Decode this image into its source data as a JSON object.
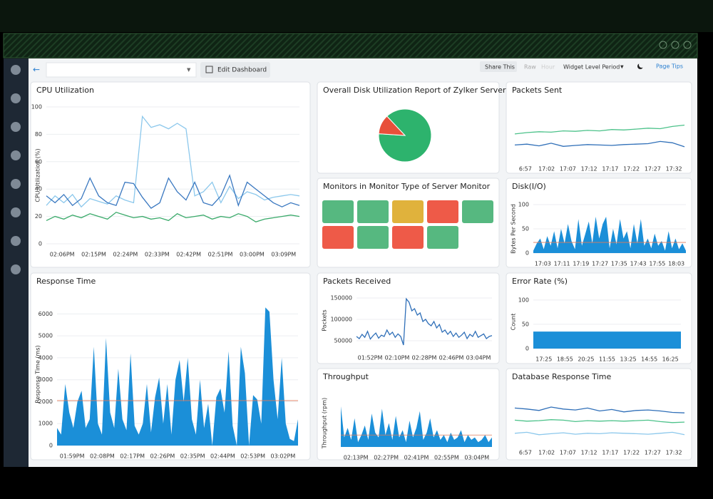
{
  "toolbar": {
    "edit": "Edit Dashboard",
    "share": "Share This",
    "raw": "Raw",
    "hour": "Hour",
    "period": "Widget Level Period",
    "tips": "Page Tips"
  },
  "widgets": [
    {
      "type": "line",
      "title": "CPU Utilization",
      "y_label": "CPU Utilization (%)",
      "ylim": [
        0,
        100
      ],
      "yticks": [
        0,
        20,
        40,
        60,
        80,
        100
      ],
      "x_labels": [
        "02:06PM",
        "02:15PM",
        "02:24PM",
        "02:33PM",
        "02:42PM",
        "02:51PM",
        "03:00PM",
        "03:09PM"
      ],
      "series": [
        {
          "color": "#8cc8ec",
          "values": [
            28,
            35,
            30,
            36,
            27,
            33,
            31,
            29,
            35,
            32,
            30,
            93,
            85,
            87,
            84,
            88,
            84,
            35,
            38,
            45,
            30,
            42,
            33,
            38,
            36,
            32,
            34,
            35,
            36,
            35
          ]
        },
        {
          "color": "#3a78c0",
          "values": [
            35,
            30,
            36,
            28,
            33,
            48,
            35,
            30,
            28,
            45,
            44,
            34,
            26,
            30,
            48,
            38,
            32,
            45,
            30,
            28,
            35,
            50,
            28,
            45,
            40,
            35,
            30,
            27,
            30,
            28
          ]
        },
        {
          "color": "#3aaa6a",
          "values": [
            17,
            20,
            18,
            21,
            19,
            22,
            20,
            18,
            23,
            21,
            19,
            20,
            18,
            19,
            17,
            22,
            19,
            20,
            21,
            18,
            20,
            19,
            22,
            20,
            16,
            18,
            19,
            20,
            21,
            20
          ]
        }
      ]
    },
    {
      "type": "pie",
      "title": "Overall Disk Utilization Report of Zylker Server",
      "values": [
        88,
        12
      ],
      "colors": [
        "#2db36d",
        "#e8503a"
      ]
    },
    {
      "type": "line",
      "title": "Packets Sent",
      "ylim": [
        0,
        100
      ],
      "x_labels": [
        "6:57",
        "17:02",
        "17:07",
        "17:12",
        "17:17",
        "17:22",
        "17:27",
        "17:32"
      ],
      "series": [
        {
          "color": "#4cc28a",
          "values": [
            55,
            58,
            60,
            59,
            62,
            61,
            63,
            62,
            65,
            64,
            66,
            68,
            67,
            72,
            75
          ]
        },
        {
          "color": "#2f6fb8",
          "values": [
            30,
            32,
            28,
            34,
            27,
            29,
            31,
            30,
            29,
            31,
            32,
            33,
            38,
            35,
            26
          ]
        }
      ]
    },
    {
      "type": "tiles",
      "title": "Monitors in Monitor Type of Server Monitor",
      "colors": [
        "#56b880",
        "#56b880",
        "#e0b23c",
        "#ee5a48",
        "#56b880",
        "#ee5a48",
        "#56b880",
        "#ee5a48",
        "#56b880"
      ]
    },
    {
      "type": "area",
      "title": "Disk(I/O)",
      "y_label": "Bytes Per Second",
      "ylim": [
        0,
        100
      ],
      "yticks": [
        0,
        50,
        100
      ],
      "threshold": 22,
      "x_labels": [
        "17:03",
        "17:11",
        "17:19",
        "17:27",
        "17:35",
        "17:43",
        "17:55",
        "18:03"
      ],
      "series": [
        {
          "color": "#1b8fd8",
          "values": [
            5,
            20,
            30,
            8,
            35,
            15,
            45,
            10,
            50,
            20,
            60,
            25,
            8,
            70,
            15,
            40,
            65,
            20,
            75,
            30,
            60,
            75,
            10,
            50,
            18,
            70,
            30,
            45,
            10,
            60,
            20,
            70,
            15,
            30,
            10,
            40,
            15,
            25,
            5,
            45,
            10,
            30,
            8,
            20,
            5
          ]
        }
      ]
    },
    {
      "type": "area",
      "title": "Response Time",
      "y_label": "Response Time (ms)",
      "ylim": [
        0,
        6500
      ],
      "yticks": [
        0,
        1000,
        2000,
        3000,
        4000,
        5000,
        6000
      ],
      "threshold": 2050,
      "x_labels": [
        "01:59PM",
        "02:08PM",
        "02:17PM",
        "02:26PM",
        "02:35PM",
        "02:44PM",
        "02:53PM",
        "03:02PM"
      ],
      "series": [
        {
          "color": "#1b8fd8",
          "values": [
            800,
            500,
            2800,
            1500,
            800,
            2000,
            2500,
            800,
            1200,
            4500,
            1000,
            500,
            4900,
            1500,
            800,
            3500,
            1200,
            700,
            4200,
            900,
            500,
            1000,
            2800,
            600,
            2200,
            3100,
            1000,
            2800,
            500,
            3000,
            3900,
            2000,
            4000,
            1200,
            500,
            3000,
            800,
            1900,
            0,
            2200,
            2600,
            1500,
            4300,
            900,
            0,
            4500,
            3300,
            0,
            2300,
            2100,
            1000,
            6300,
            6100,
            3000,
            1200,
            4000,
            1000,
            300,
            200,
            1200
          ]
        }
      ]
    },
    {
      "type": "line",
      "title": "Packets Received",
      "y_label": "Packets",
      "ylim": [
        35000,
        160000
      ],
      "yticks": [
        50000,
        100000,
        150000
      ],
      "x_labels": [
        "01:52PM",
        "02:10PM",
        "02:28PM",
        "02:46PM",
        "03:04PM"
      ],
      "series": [
        {
          "color": "#2f6fb8",
          "values": [
            60000,
            55000,
            65000,
            58000,
            72000,
            54000,
            62000,
            68000,
            56000,
            63000,
            60000,
            75000,
            64000,
            70000,
            58000,
            66000,
            60000,
            40000,
            148000,
            140000,
            120000,
            125000,
            110000,
            115000,
            95000,
            100000,
            90000,
            85000,
            95000,
            80000,
            88000,
            70000,
            75000,
            65000,
            72000,
            60000,
            68000,
            58000,
            63000,
            70000,
            55000,
            65000,
            60000,
            72000,
            58000,
            62000,
            66000,
            55000,
            60000,
            62000
          ]
        }
      ]
    },
    {
      "type": "area",
      "title": "Error Rate (%)",
      "y_label": "Count",
      "ylim": [
        0,
        110
      ],
      "yticks": [
        0,
        50,
        100
      ],
      "x_labels": [
        "17:25",
        "18:55",
        "20:25",
        "11:55",
        "13:25",
        "14:55",
        "16:25"
      ],
      "series": [
        {
          "color": "#1b8fd8",
          "values": [
            35,
            35,
            35,
            35,
            35,
            35,
            35,
            35,
            35,
            35
          ]
        }
      ]
    },
    {
      "type": "area",
      "title": "Throughput",
      "y_label": "Throughput (rpm)",
      "ylim": [
        0,
        100
      ],
      "threshold": 25,
      "x_labels": [
        "02:13PM",
        "02:27PM",
        "02:41PM",
        "02:55PM",
        "03:04PM"
      ],
      "series": [
        {
          "color": "#1b8fd8",
          "values": [
            85,
            20,
            40,
            15,
            60,
            10,
            25,
            45,
            15,
            70,
            30,
            20,
            80,
            25,
            50,
            15,
            65,
            20,
            35,
            10,
            55,
            20,
            40,
            75,
            15,
            30,
            60,
            20,
            35,
            15,
            25,
            10,
            30,
            15,
            20,
            35,
            10,
            25,
            15,
            20,
            10,
            15,
            25,
            10,
            20
          ]
        }
      ]
    },
    {
      "type": "line",
      "title": "Database Response Time",
      "ylim": [
        0,
        100
      ],
      "x_labels": [
        "6:57",
        "17:02",
        "17:07",
        "17:12",
        "17:17",
        "17:22",
        "17:27",
        "17:32"
      ],
      "series": [
        {
          "color": "#2f6fb8",
          "values": [
            70,
            68,
            65,
            72,
            68,
            66,
            70,
            64,
            67,
            62,
            65,
            66,
            64,
            61,
            60
          ]
        },
        {
          "color": "#4cc28a",
          "values": [
            45,
            43,
            44,
            46,
            45,
            42,
            44,
            43,
            44,
            43,
            44,
            45,
            42,
            40,
            41
          ]
        },
        {
          "color": "#8cc8ec",
          "values": [
            18,
            20,
            15,
            17,
            19,
            16,
            18,
            17,
            19,
            18,
            17,
            16,
            18,
            20,
            15
          ]
        }
      ]
    }
  ]
}
